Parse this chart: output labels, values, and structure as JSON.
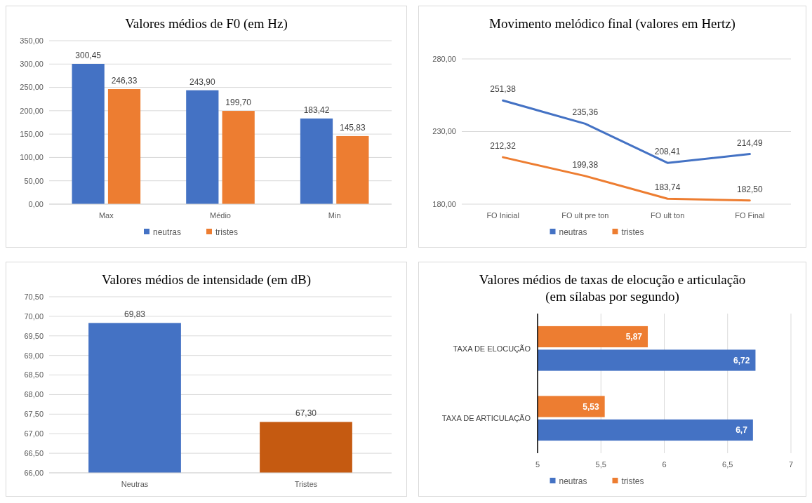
{
  "chart_data": [
    {
      "type": "bar",
      "title": "Valores médios de F0 (em Hz)",
      "categories": [
        "Max",
        "Médio",
        "Min"
      ],
      "series": [
        {
          "name": "neutras",
          "color": "#4472c4",
          "values": [
            300.45,
            243.9,
            183.42
          ],
          "value_labels": [
            "300,45",
            "243,90",
            "183,42"
          ]
        },
        {
          "name": "tristes",
          "color": "#ed7d31",
          "values": [
            246.33,
            199.7,
            145.83
          ],
          "value_labels": [
            "246,33",
            "199,70",
            "145,83"
          ]
        }
      ],
      "ylim": [
        0,
        350
      ],
      "yticks": [
        {
          "value": 0,
          "label": "0,00"
        },
        {
          "value": 50,
          "label": "50,00"
        },
        {
          "value": 100,
          "label": "100,00"
        },
        {
          "value": 150,
          "label": "150,00"
        },
        {
          "value": 200,
          "label": "200,00"
        },
        {
          "value": 250,
          "label": "250,00"
        },
        {
          "value": 300,
          "label": "300,00"
        },
        {
          "value": 350,
          "label": "350,00"
        }
      ],
      "grid": "y",
      "legend": "bottom"
    },
    {
      "type": "line",
      "title": "Movimento melódico final (valores em Hertz)",
      "categories": [
        "FO Inicial",
        "FO ult pre ton",
        "FO ult ton",
        "FO Final"
      ],
      "series": [
        {
          "name": "neutras",
          "color": "#4472c4",
          "values": [
            251.38,
            235.36,
            208.41,
            214.49
          ],
          "value_labels": [
            "251,38",
            "235,36",
            "208,41",
            "214,49"
          ]
        },
        {
          "name": "tristes",
          "color": "#ed7d31",
          "values": [
            212.32,
            199.38,
            183.74,
            182.5
          ],
          "value_labels": [
            "212,32",
            "199,38",
            "183,74",
            "182,50"
          ]
        }
      ],
      "ylim": [
        180,
        280
      ],
      "yticks": [
        {
          "value": 180,
          "label": "180,00"
        },
        {
          "value": 230,
          "label": "230,00"
        },
        {
          "value": 280,
          "label": "280,00"
        }
      ],
      "grid": "y",
      "legend": "bottom"
    },
    {
      "type": "bar",
      "title": "Valores médios de intensidade (em dB)",
      "categories": [
        "Neutras",
        "Tristes"
      ],
      "values": [
        69.83,
        67.3
      ],
      "colors": [
        "#4472c4",
        "#c55a11"
      ],
      "value_labels": [
        "69,83",
        "67,30"
      ],
      "ylim": [
        66,
        70.5
      ],
      "yticks": [
        {
          "value": 66,
          "label": "66,00"
        },
        {
          "value": 66.5,
          "label": "66,50"
        },
        {
          "value": 67,
          "label": "67,00"
        },
        {
          "value": 67.5,
          "label": "67,50"
        },
        {
          "value": 68,
          "label": "68,00"
        },
        {
          "value": 68.5,
          "label": "68,50"
        },
        {
          "value": 69,
          "label": "69,00"
        },
        {
          "value": 69.5,
          "label": "69,50"
        },
        {
          "value": 70,
          "label": "70,00"
        },
        {
          "value": 70.5,
          "label": "70,50"
        }
      ],
      "grid": "y"
    },
    {
      "type": "bar",
      "orientation": "horizontal",
      "title": "Valores médios de taxas de elocução e articulação (em sílabas por segundo)",
      "categories": [
        "TAXA DE ELOCUÇÃO",
        "TAXA DE ARTICULAÇÃO"
      ],
      "series": [
        {
          "name": "neutras",
          "color": "#4472c4",
          "values": [
            6.72,
            6.7
          ],
          "value_labels": [
            "6,72",
            "6,7"
          ]
        },
        {
          "name": "tristes",
          "color": "#ed7d31",
          "values": [
            5.87,
            5.53
          ],
          "value_labels": [
            "5,87",
            "5,53"
          ]
        }
      ],
      "xlim": [
        5,
        7
      ],
      "xticks": [
        5,
        {
          "value": 5.5,
          "label": "5,5"
        },
        6,
        {
          "value": 6.5,
          "label": "6,5"
        },
        7
      ],
      "grid": "x",
      "legend": "bottom"
    }
  ]
}
